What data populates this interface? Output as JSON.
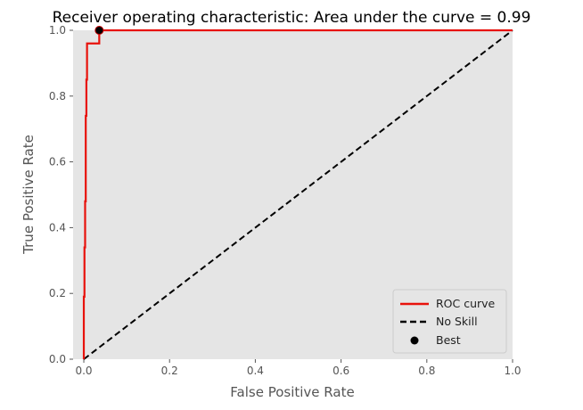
{
  "chart_data": {
    "type": "line",
    "title": "Receiver operating characteristic: Area under the curve = 0.99",
    "xlabel": "False Positive Rate",
    "ylabel": "True Positive Rate",
    "xlim": [
      -0.025,
      1.0
    ],
    "ylim": [
      0.0,
      1.0
    ],
    "xticks": [
      0.0,
      0.2,
      0.4,
      0.6,
      0.8,
      1.0
    ],
    "yticks": [
      0.0,
      0.2,
      0.4,
      0.6,
      0.8,
      1.0
    ],
    "xtick_labels": [
      "0.0",
      "0.2",
      "0.4",
      "0.6",
      "0.8",
      "1.0"
    ],
    "ytick_labels": [
      "0.0",
      "0.2",
      "0.4",
      "0.6",
      "0.8",
      "1.0"
    ],
    "grid": false,
    "background": "#e5e5e5",
    "legend_position": "lower-right",
    "series": [
      {
        "name": "ROC curve",
        "style": "solid",
        "color": "#e8120c",
        "x": [
          0.0,
          0.0,
          0.0015,
          0.0015,
          0.003,
          0.003,
          0.0045,
          0.0045,
          0.006,
          0.006,
          0.0075,
          0.0075,
          0.009,
          0.009,
          0.036,
          0.036,
          1.0
        ],
        "y": [
          0.0,
          0.19,
          0.19,
          0.34,
          0.34,
          0.48,
          0.48,
          0.74,
          0.74,
          0.85,
          0.85,
          0.96,
          0.96,
          0.96,
          0.96,
          1.0,
          1.0
        ]
      },
      {
        "name": "No Skill",
        "style": "dashed",
        "color": "#000000",
        "x": [
          0.0,
          1.0
        ],
        "y": [
          0.0,
          1.0
        ]
      }
    ],
    "points": [
      {
        "name": "Best",
        "color": "#000000",
        "edgecolor": "#c00000",
        "x": 0.036,
        "y": 1.0
      }
    ]
  }
}
